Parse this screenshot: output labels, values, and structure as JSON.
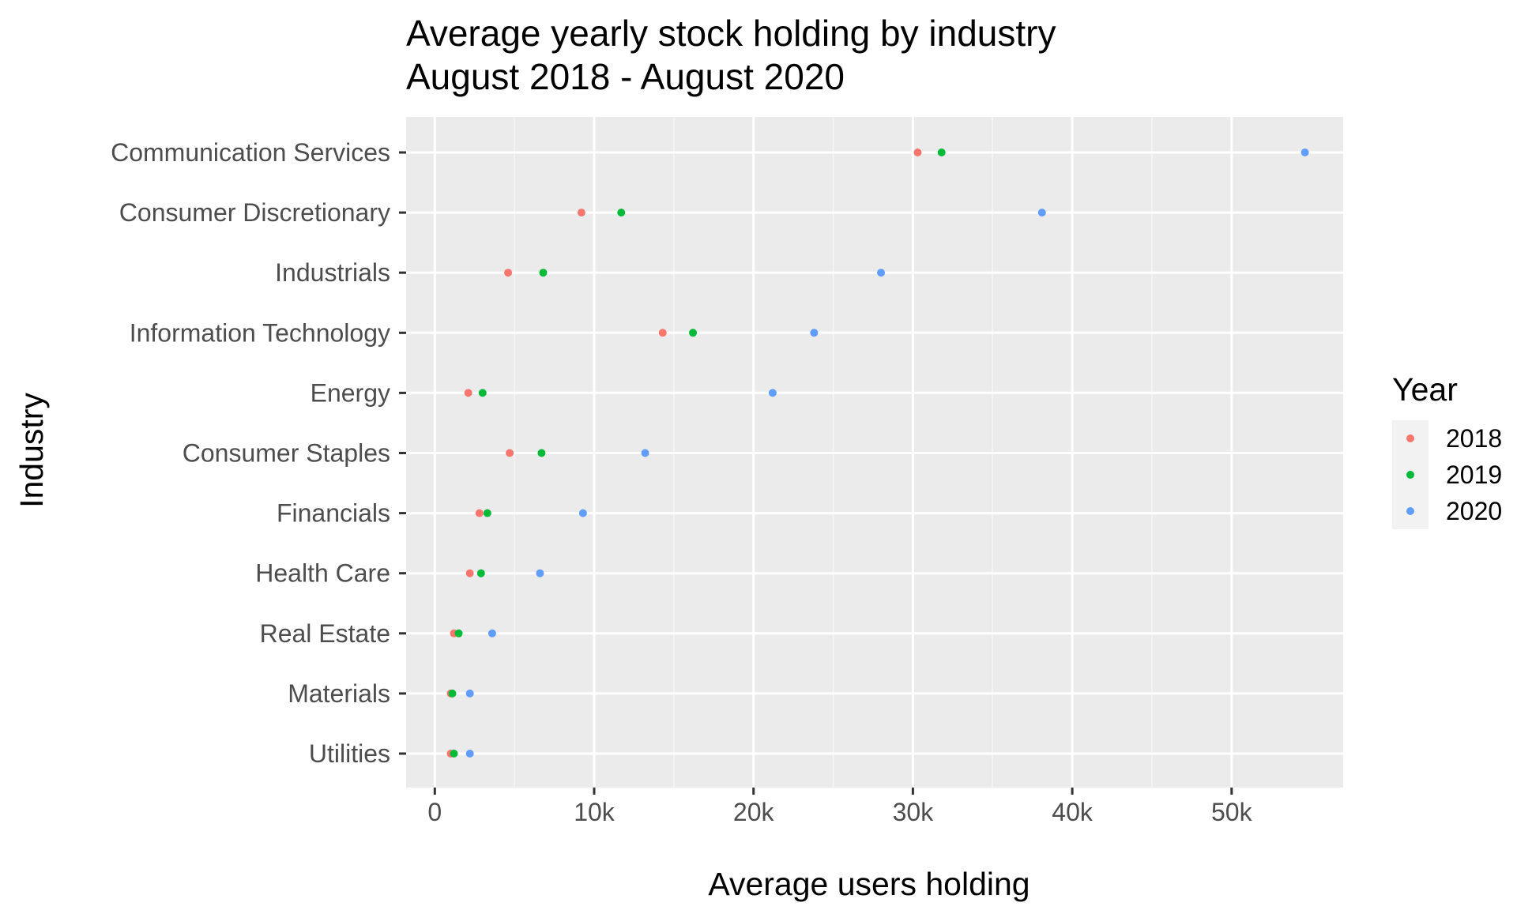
{
  "chart_data": {
    "type": "scatter",
    "title": "Average yearly stock holding by industry",
    "subtitle": "August 2018 - August 2020",
    "xlabel": "Average users holding",
    "ylabel": "Industry",
    "xlim": [
      -1800,
      57000
    ],
    "x_ticks": [
      0,
      10000,
      20000,
      30000,
      40000,
      50000
    ],
    "x_tick_labels": [
      "0",
      "10k",
      "20k",
      "30k",
      "40k",
      "50k"
    ],
    "grid": true,
    "legend_title": "Year",
    "legend_position": "right",
    "categories": [
      "Communication Services",
      "Consumer Discretionary",
      "Industrials",
      "Information Technology",
      "Energy",
      "Consumer Staples",
      "Financials",
      "Health Care",
      "Real Estate",
      "Materials",
      "Utilities"
    ],
    "series": [
      {
        "name": "2018",
        "color": "#F8766D",
        "values": [
          30300,
          9200,
          4600,
          14300,
          2100,
          4700,
          2800,
          2200,
          1200,
          1000,
          1000
        ]
      },
      {
        "name": "2019",
        "color": "#00BA38",
        "values": [
          31800,
          11700,
          6800,
          16200,
          3000,
          6700,
          3300,
          2900,
          1500,
          1100,
          1200
        ]
      },
      {
        "name": "2020",
        "color": "#619CFF",
        "values": [
          54600,
          38100,
          28000,
          23800,
          21200,
          13200,
          9300,
          6600,
          3600,
          2200,
          2200
        ]
      }
    ]
  },
  "colors": {
    "panel_background": "#EBEBEB",
    "grid_major": "#FFFFFF",
    "grid_minor": "#F5F5F5",
    "legend_key_background": "#F2F2F2",
    "tick_mark": "#333333"
  }
}
